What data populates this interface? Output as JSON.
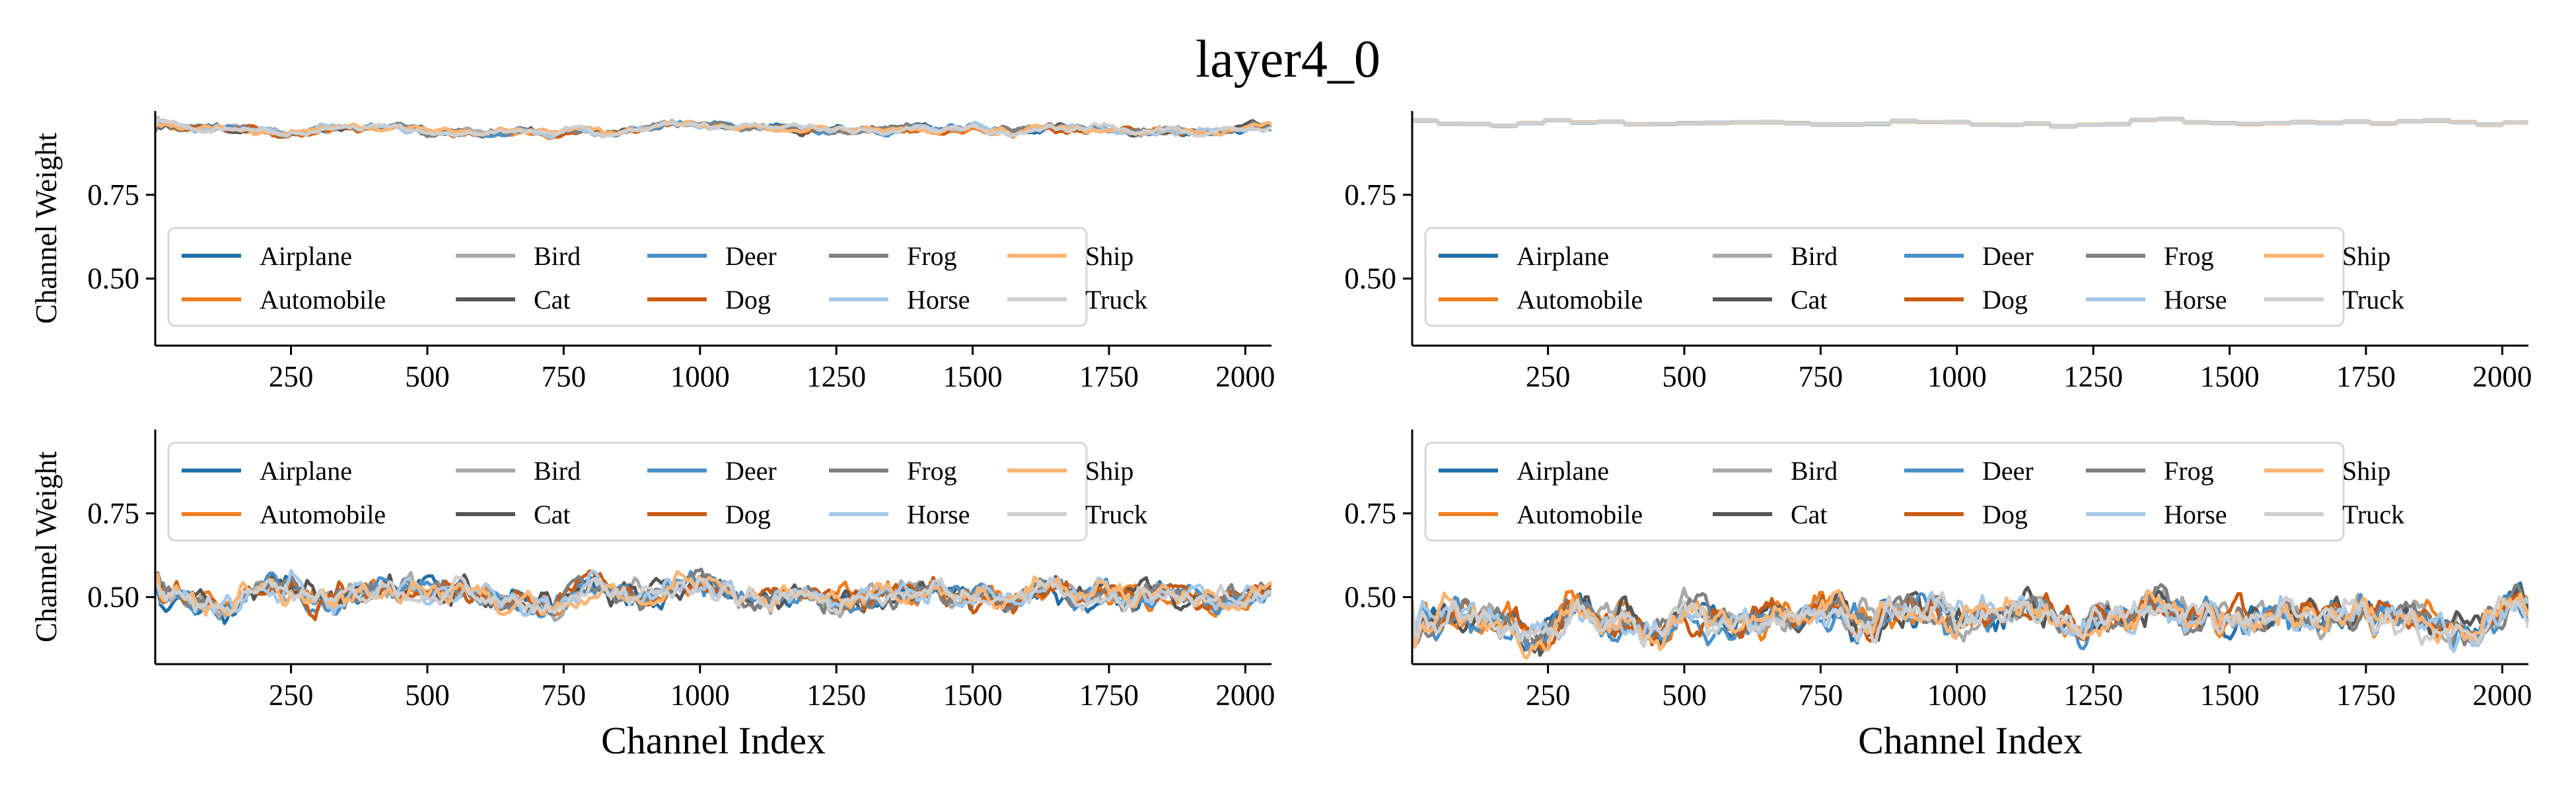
{
  "figure": {
    "title": "layer4_0"
  },
  "classes": [
    {
      "name": "Airplane",
      "color": "#1f6fa8"
    },
    {
      "name": "Automobile",
      "color": "#f07f1f"
    },
    {
      "name": "Bird",
      "color": "#a9a9a9"
    },
    {
      "name": "Cat",
      "color": "#555555"
    },
    {
      "name": "Deer",
      "color": "#4a90c8"
    },
    {
      "name": "Dog",
      "color": "#c85a12"
    },
    {
      "name": "Frog",
      "color": "#808080"
    },
    {
      "name": "Horse",
      "color": "#a6c8e8"
    },
    {
      "name": "Ship",
      "color": "#fbb574"
    },
    {
      "name": "Truck",
      "color": "#cfcfcf"
    }
  ],
  "chart_data": [
    {
      "id": "top-left",
      "type": "line",
      "xlabel": "",
      "ylabel": "Channel Weight",
      "xlim": [
        1,
        2048
      ],
      "ylim": [
        0.3,
        1.0
      ],
      "xticks": [
        250,
        500,
        750,
        1000,
        1250,
        1500,
        1750,
        2000
      ],
      "yticks": [
        0.5,
        0.75
      ],
      "ytick_labels": [
        "0.50",
        "0.75"
      ],
      "legend_loc": "lower-left",
      "series_profile": {
        "mean": 0.945,
        "amplitude": 0.02,
        "spread": 0.012,
        "style": "smooth"
      }
    },
    {
      "id": "top-right",
      "type": "line",
      "xlabel": "",
      "ylabel": "",
      "xlim": [
        1,
        2048
      ],
      "ylim": [
        0.3,
        1.0
      ],
      "xticks": [
        250,
        500,
        750,
        1000,
        1250,
        1500,
        1750,
        2000
      ],
      "yticks": [
        0.5,
        0.75
      ],
      "ytick_labels": [
        "0.50",
        "0.75"
      ],
      "legend_loc": "lower-left",
      "series_profile": {
        "mean": 0.965,
        "amplitude": 0.012,
        "spread": 0.002,
        "style": "step"
      }
    },
    {
      "id": "bottom-left",
      "type": "line",
      "xlabel": "Channel Index",
      "ylabel": "Channel Weight",
      "xlim": [
        1,
        2048
      ],
      "ylim": [
        0.3,
        1.0
      ],
      "xticks": [
        250,
        500,
        750,
        1000,
        1250,
        1500,
        1750,
        2000
      ],
      "yticks": [
        0.5,
        0.75
      ],
      "ytick_labels": [
        "0.50",
        "0.75"
      ],
      "legend_loc": "upper-left",
      "series_profile": {
        "mean": 0.51,
        "amplitude": 0.05,
        "spread": 0.03,
        "style": "noisy"
      }
    },
    {
      "id": "bottom-right",
      "type": "line",
      "xlabel": "Channel Index",
      "ylabel": "",
      "xlim": [
        1,
        2048
      ],
      "ylim": [
        0.3,
        1.0
      ],
      "xticks": [
        250,
        500,
        750,
        1000,
        1250,
        1500,
        1750,
        2000
      ],
      "yticks": [
        0.5,
        0.75
      ],
      "ytick_labels": [
        "0.50",
        "0.75"
      ],
      "legend_loc": "upper-left",
      "series_profile": {
        "mean": 0.43,
        "amplitude": 0.07,
        "spread": 0.04,
        "style": "noisy"
      }
    }
  ]
}
